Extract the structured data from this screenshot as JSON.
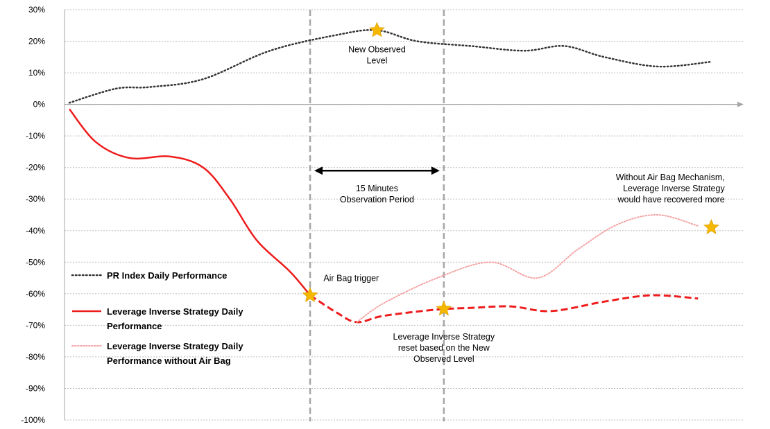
{
  "chart_data": {
    "type": "line",
    "title": "",
    "xlabel": "",
    "ylabel": "",
    "ylim": [
      -100,
      30
    ],
    "y_ticks": [
      30,
      20,
      10,
      0,
      -10,
      -20,
      -30,
      -40,
      -50,
      -60,
      -70,
      -80,
      -90,
      -100
    ],
    "y_tick_labels": [
      "30%",
      "20%",
      "10%",
      "0%",
      "-10%",
      "-20%",
      "-30%",
      "-40%",
      "-50%",
      "-60%",
      "-70%",
      "-80%",
      "-90%",
      "-100%"
    ],
    "grid": true,
    "legend_position": "left",
    "colors": {
      "index": "#333333",
      "strategy": "#ee1c1c",
      "no_airbag": "#f4a3a3",
      "vline": "#a6a6a6",
      "star": "#f5b800",
      "grid": "#bfbfbf"
    },
    "series": [
      {
        "name": "PR Index Daily Performance",
        "style": "dotted",
        "points": [
          [
            0,
            0.5
          ],
          [
            0.07,
            5
          ],
          [
            0.12,
            5.5
          ],
          [
            0.2,
            8
          ],
          [
            0.3,
            17
          ],
          [
            0.4,
            22
          ],
          [
            0.46,
            23.5
          ],
          [
            0.52,
            20
          ],
          [
            0.6,
            18.5
          ],
          [
            0.68,
            17
          ],
          [
            0.74,
            18.5
          ],
          [
            0.8,
            15
          ],
          [
            0.88,
            12
          ],
          [
            0.96,
            13.5
          ]
        ]
      },
      {
        "name": "Leverage Inverse Strategy Daily Performance",
        "style": "solid",
        "points": [
          [
            0,
            -1.5
          ],
          [
            0.04,
            -12
          ],
          [
            0.09,
            -17
          ],
          [
            0.15,
            -16.5
          ],
          [
            0.2,
            -20
          ],
          [
            0.24,
            -30
          ],
          [
            0.28,
            -43
          ],
          [
            0.33,
            -53
          ],
          [
            0.36,
            -60.5
          ]
        ]
      },
      {
        "name": "Leverage Inverse Strategy Daily Performance (after reset)",
        "style": "dashed",
        "points": [
          [
            0.36,
            -60.5
          ],
          [
            0.4,
            -66
          ],
          [
            0.43,
            -69
          ],
          [
            0.47,
            -67
          ],
          [
            0.55,
            -65
          ],
          [
            0.6,
            -64.5
          ],
          [
            0.66,
            -64
          ],
          [
            0.72,
            -65.5
          ],
          [
            0.8,
            -62.5
          ],
          [
            0.87,
            -60.5
          ],
          [
            0.94,
            -61.5
          ]
        ]
      },
      {
        "name": "Leverage Inverse Strategy Daily Performance without Air Bag",
        "style": "dotted",
        "points": [
          [
            0.43,
            -69
          ],
          [
            0.47,
            -63
          ],
          [
            0.55,
            -55
          ],
          [
            0.63,
            -50
          ],
          [
            0.7,
            -55
          ],
          [
            0.76,
            -46
          ],
          [
            0.82,
            -38
          ],
          [
            0.88,
            -35
          ],
          [
            0.94,
            -38.5
          ]
        ]
      }
    ],
    "markers": [
      {
        "x": 0.46,
        "y": 23.5
      },
      {
        "x": 0.36,
        "y": -60.5
      },
      {
        "x": 0.56,
        "y": -64.8
      },
      {
        "x": 0.96,
        "y": -39
      }
    ],
    "vlines": [
      0.36,
      0.56
    ],
    "period_arrow": {
      "x1": 0.36,
      "x2": 0.56,
      "y": -21
    },
    "annotations": [
      {
        "key": "new_level",
        "x": 0.46,
        "y": 16.5,
        "anchor": "middle",
        "lines": [
          "New Observed",
          "Level"
        ]
      },
      {
        "key": "period",
        "x": 0.46,
        "y": -27.5,
        "anchor": "middle",
        "lines": [
          "15 Minutes",
          "Observation Period"
        ]
      },
      {
        "key": "airbag",
        "x": 0.38,
        "y": -56,
        "anchor": "start",
        "lines": [
          "Air Bag trigger"
        ]
      },
      {
        "key": "reset",
        "x": 0.56,
        "y": -74.5,
        "anchor": "middle",
        "lines": [
          "Leverage Inverse Strategy",
          "reset based on the New",
          "Observed Level"
        ]
      },
      {
        "key": "without",
        "x": 0.98,
        "y": -24,
        "anchor": "end",
        "lines": [
          "Without Air Bag Mechanism,",
          "Leverage Inverse Strategy",
          "would have recovered more"
        ]
      }
    ],
    "legend": [
      {
        "style": "dotted",
        "lines": [
          "PR Index Daily Performance"
        ]
      },
      {
        "style": "solid",
        "lines": [
          "Leverage Inverse Strategy Daily",
          "Performance"
        ]
      },
      {
        "style": "pinkdotted",
        "lines": [
          "Leverage Inverse Strategy Daily",
          "Performance without Air Bag"
        ]
      }
    ]
  }
}
